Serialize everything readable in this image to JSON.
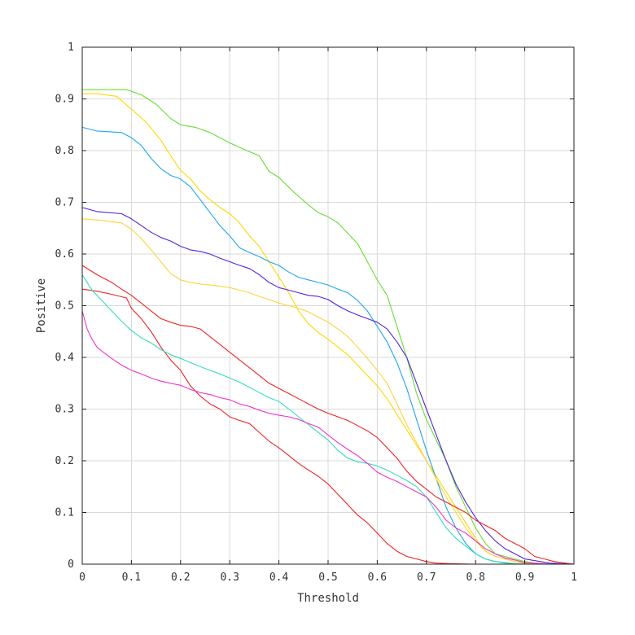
{
  "chart_data": {
    "type": "line",
    "title": "",
    "xlabel": "Threshold",
    "ylabel": "Positive",
    "xlim": [
      0,
      1
    ],
    "ylim": [
      0,
      1
    ],
    "xticks": [
      "0",
      "0.1",
      "0.2",
      "0.3",
      "0.4",
      "0.5",
      "0.6",
      "0.7",
      "0.8",
      "0.9",
      "1"
    ],
    "yticks": [
      "0",
      "0.1",
      "0.2",
      "0.3",
      "0.4",
      "0.5",
      "0.6",
      "0.7",
      "0.8",
      "0.9",
      "1"
    ],
    "grid": true,
    "series": [
      {
        "color": "#66dd33",
        "x": [
          0,
          0.05,
          0.09,
          0.12,
          0.15,
          0.18,
          0.2,
          0.23,
          0.26,
          0.3,
          0.33,
          0.36,
          0.38,
          0.4,
          0.43,
          0.46,
          0.48,
          0.5,
          0.52,
          0.54,
          0.56,
          0.58,
          0.6,
          0.62,
          0.64,
          0.66,
          0.68,
          0.7,
          0.72,
          0.74,
          0.76,
          0.78,
          0.8,
          0.82,
          0.84,
          0.86,
          0.88,
          0.9,
          0.92,
          0.94,
          0.96,
          0.98,
          1.0
        ],
        "y": [
          0.918,
          0.918,
          0.918,
          0.908,
          0.89,
          0.862,
          0.85,
          0.845,
          0.835,
          0.815,
          0.802,
          0.79,
          0.76,
          0.748,
          0.72,
          0.695,
          0.68,
          0.672,
          0.66,
          0.64,
          0.62,
          0.585,
          0.55,
          0.52,
          0.46,
          0.4,
          0.33,
          0.28,
          0.24,
          0.2,
          0.15,
          0.11,
          0.07,
          0.04,
          0.02,
          0.015,
          0.01,
          0.005,
          0.002,
          0.001,
          0,
          0,
          0
        ]
      },
      {
        "color": "#ffd700",
        "x": [
          0,
          0.03,
          0.07,
          0.1,
          0.13,
          0.16,
          0.18,
          0.2,
          0.22,
          0.24,
          0.26,
          0.28,
          0.3,
          0.32,
          0.34,
          0.36,
          0.38,
          0.4,
          0.42,
          0.44,
          0.46,
          0.48,
          0.5,
          0.52,
          0.54,
          0.56,
          0.58,
          0.6,
          0.62,
          0.64,
          0.66,
          0.68,
          0.7,
          0.72,
          0.74,
          0.76,
          0.78,
          0.8,
          0.82,
          0.84,
          0.86,
          0.88,
          0.9,
          0.95,
          1.0
        ],
        "y": [
          0.91,
          0.91,
          0.905,
          0.88,
          0.855,
          0.82,
          0.79,
          0.762,
          0.745,
          0.722,
          0.705,
          0.69,
          0.678,
          0.66,
          0.635,
          0.615,
          0.585,
          0.555,
          0.525,
          0.49,
          0.465,
          0.448,
          0.435,
          0.42,
          0.405,
          0.385,
          0.365,
          0.345,
          0.32,
          0.29,
          0.26,
          0.23,
          0.2,
          0.17,
          0.14,
          0.11,
          0.08,
          0.05,
          0.025,
          0.015,
          0.01,
          0.005,
          0.002,
          0,
          0
        ]
      },
      {
        "color": "#1fa5ee",
        "x": [
          0,
          0.03,
          0.08,
          0.1,
          0.12,
          0.14,
          0.16,
          0.18,
          0.2,
          0.22,
          0.24,
          0.26,
          0.28,
          0.3,
          0.32,
          0.34,
          0.36,
          0.38,
          0.4,
          0.42,
          0.44,
          0.46,
          0.48,
          0.5,
          0.52,
          0.54,
          0.56,
          0.58,
          0.6,
          0.62,
          0.64,
          0.66,
          0.68,
          0.7,
          0.72,
          0.74,
          0.76,
          0.78,
          0.8,
          0.82,
          0.84,
          0.86,
          0.88,
          0.9,
          0.95,
          1.0
        ],
        "y": [
          0.845,
          0.838,
          0.835,
          0.825,
          0.81,
          0.785,
          0.765,
          0.752,
          0.745,
          0.73,
          0.705,
          0.68,
          0.655,
          0.635,
          0.612,
          0.603,
          0.595,
          0.585,
          0.578,
          0.565,
          0.555,
          0.55,
          0.545,
          0.54,
          0.532,
          0.525,
          0.51,
          0.49,
          0.46,
          0.43,
          0.39,
          0.34,
          0.28,
          0.22,
          0.165,
          0.11,
          0.07,
          0.04,
          0.02,
          0.01,
          0.005,
          0.003,
          0.001,
          0,
          0,
          0
        ]
      },
      {
        "color": "#5522dd",
        "x": [
          0,
          0.03,
          0.08,
          0.1,
          0.12,
          0.14,
          0.16,
          0.18,
          0.2,
          0.22,
          0.24,
          0.26,
          0.28,
          0.3,
          0.32,
          0.34,
          0.36,
          0.38,
          0.4,
          0.42,
          0.44,
          0.46,
          0.48,
          0.5,
          0.52,
          0.54,
          0.56,
          0.58,
          0.6,
          0.62,
          0.64,
          0.66,
          0.68,
          0.7,
          0.72,
          0.74,
          0.76,
          0.78,
          0.8,
          0.82,
          0.84,
          0.86,
          0.88,
          0.9,
          0.95,
          1.0
        ],
        "y": [
          0.69,
          0.682,
          0.678,
          0.668,
          0.655,
          0.642,
          0.632,
          0.625,
          0.615,
          0.608,
          0.605,
          0.6,
          0.592,
          0.585,
          0.578,
          0.572,
          0.56,
          0.545,
          0.535,
          0.53,
          0.525,
          0.52,
          0.518,
          0.512,
          0.5,
          0.49,
          0.482,
          0.475,
          0.468,
          0.455,
          0.43,
          0.4,
          0.35,
          0.3,
          0.25,
          0.2,
          0.155,
          0.12,
          0.09,
          0.065,
          0.045,
          0.03,
          0.02,
          0.01,
          0.002,
          0
        ]
      },
      {
        "color": "#ffd23a",
        "x": [
          0,
          0.04,
          0.08,
          0.1,
          0.12,
          0.14,
          0.16,
          0.18,
          0.2,
          0.22,
          0.24,
          0.26,
          0.28,
          0.3,
          0.32,
          0.34,
          0.36,
          0.38,
          0.4,
          0.42,
          0.44,
          0.46,
          0.48,
          0.5,
          0.52,
          0.54,
          0.56,
          0.58,
          0.6,
          0.62,
          0.64,
          0.66,
          0.68,
          0.7,
          0.72,
          0.74,
          0.76,
          0.78,
          0.8,
          0.82,
          0.84,
          0.86,
          0.88,
          0.9,
          0.95,
          1.0
        ],
        "y": [
          0.668,
          0.665,
          0.66,
          0.648,
          0.63,
          0.608,
          0.585,
          0.562,
          0.55,
          0.545,
          0.542,
          0.54,
          0.538,
          0.535,
          0.53,
          0.525,
          0.518,
          0.512,
          0.505,
          0.5,
          0.495,
          0.488,
          0.478,
          0.468,
          0.455,
          0.44,
          0.42,
          0.398,
          0.375,
          0.35,
          0.31,
          0.27,
          0.235,
          0.2,
          0.165,
          0.13,
          0.1,
          0.07,
          0.045,
          0.025,
          0.015,
          0.01,
          0.005,
          0.002,
          0,
          0
        ]
      },
      {
        "color": "#ee2222",
        "x": [
          0,
          0.03,
          0.06,
          0.08,
          0.1,
          0.12,
          0.14,
          0.16,
          0.18,
          0.2,
          0.22,
          0.24,
          0.26,
          0.28,
          0.3,
          0.32,
          0.34,
          0.36,
          0.38,
          0.4,
          0.42,
          0.44,
          0.46,
          0.48,
          0.5,
          0.52,
          0.54,
          0.56,
          0.58,
          0.6,
          0.62,
          0.64,
          0.66,
          0.68,
          0.7,
          0.72,
          0.74,
          0.76,
          0.78,
          0.8,
          0.82,
          0.84,
          0.86,
          0.88,
          0.9,
          0.92,
          0.94,
          0.96,
          1.0
        ],
        "y": [
          0.578,
          0.56,
          0.545,
          0.532,
          0.52,
          0.505,
          0.49,
          0.475,
          0.468,
          0.462,
          0.46,
          0.455,
          0.44,
          0.425,
          0.41,
          0.395,
          0.38,
          0.365,
          0.35,
          0.34,
          0.33,
          0.32,
          0.31,
          0.3,
          0.292,
          0.285,
          0.278,
          0.268,
          0.258,
          0.245,
          0.225,
          0.205,
          0.18,
          0.16,
          0.145,
          0.13,
          0.12,
          0.11,
          0.1,
          0.085,
          0.075,
          0.065,
          0.05,
          0.04,
          0.03,
          0.015,
          0.01,
          0.005,
          0
        ]
      },
      {
        "color": "#ee2222",
        "x": [
          0,
          0.03,
          0.06,
          0.09,
          0.1,
          0.12,
          0.14,
          0.16,
          0.18,
          0.2,
          0.22,
          0.24,
          0.26,
          0.28,
          0.3,
          0.32,
          0.34,
          0.36,
          0.38,
          0.4,
          0.42,
          0.44,
          0.46,
          0.48,
          0.5,
          0.52,
          0.54,
          0.56,
          0.58,
          0.6,
          0.62,
          0.64,
          0.66,
          0.68,
          0.7,
          0.72,
          0.75,
          0.8,
          1.0
        ],
        "y": [
          0.532,
          0.528,
          0.522,
          0.515,
          0.495,
          0.475,
          0.45,
          0.42,
          0.395,
          0.375,
          0.345,
          0.325,
          0.31,
          0.3,
          0.285,
          0.278,
          0.272,
          0.255,
          0.238,
          0.225,
          0.21,
          0.195,
          0.182,
          0.17,
          0.155,
          0.135,
          0.115,
          0.095,
          0.08,
          0.06,
          0.04,
          0.025,
          0.015,
          0.01,
          0.005,
          0.002,
          0.001,
          0,
          0
        ]
      },
      {
        "color": "#33ddbb",
        "x": [
          0,
          0.02,
          0.04,
          0.06,
          0.08,
          0.1,
          0.12,
          0.14,
          0.16,
          0.18,
          0.2,
          0.22,
          0.24,
          0.26,
          0.28,
          0.3,
          0.32,
          0.34,
          0.36,
          0.38,
          0.4,
          0.42,
          0.44,
          0.46,
          0.48,
          0.5,
          0.52,
          0.54,
          0.56,
          0.58,
          0.6,
          0.62,
          0.64,
          0.66,
          0.68,
          0.7,
          0.72,
          0.74,
          0.76,
          0.78,
          0.8,
          0.82,
          0.84,
          0.86,
          0.9,
          1.0
        ],
        "y": [
          0.56,
          0.53,
          0.51,
          0.49,
          0.47,
          0.452,
          0.438,
          0.428,
          0.415,
          0.405,
          0.398,
          0.39,
          0.382,
          0.375,
          0.368,
          0.36,
          0.352,
          0.342,
          0.332,
          0.322,
          0.315,
          0.3,
          0.285,
          0.27,
          0.255,
          0.24,
          0.22,
          0.205,
          0.198,
          0.195,
          0.19,
          0.182,
          0.172,
          0.162,
          0.15,
          0.13,
          0.1,
          0.07,
          0.05,
          0.035,
          0.02,
          0.01,
          0.005,
          0.002,
          0,
          0
        ]
      },
      {
        "color": "#ee33cc",
        "x": [
          0,
          0.01,
          0.02,
          0.03,
          0.04,
          0.06,
          0.08,
          0.1,
          0.12,
          0.14,
          0.16,
          0.18,
          0.2,
          0.22,
          0.24,
          0.26,
          0.28,
          0.3,
          0.32,
          0.34,
          0.36,
          0.38,
          0.4,
          0.42,
          0.44,
          0.46,
          0.48,
          0.5,
          0.52,
          0.54,
          0.56,
          0.58,
          0.6,
          0.62,
          0.64,
          0.66,
          0.68,
          0.7,
          0.72,
          0.74,
          0.76,
          0.78,
          0.8,
          0.82,
          0.84,
          0.86,
          0.88,
          0.9,
          0.95,
          1.0
        ],
        "y": [
          0.49,
          0.455,
          0.435,
          0.42,
          0.412,
          0.398,
          0.385,
          0.375,
          0.368,
          0.36,
          0.354,
          0.35,
          0.346,
          0.338,
          0.332,
          0.328,
          0.322,
          0.318,
          0.31,
          0.305,
          0.298,
          0.292,
          0.288,
          0.285,
          0.28,
          0.272,
          0.265,
          0.25,
          0.235,
          0.222,
          0.21,
          0.195,
          0.178,
          0.168,
          0.16,
          0.15,
          0.14,
          0.13,
          0.11,
          0.085,
          0.07,
          0.06,
          0.045,
          0.03,
          0.02,
          0.012,
          0.008,
          0.003,
          0,
          0
        ]
      }
    ]
  }
}
